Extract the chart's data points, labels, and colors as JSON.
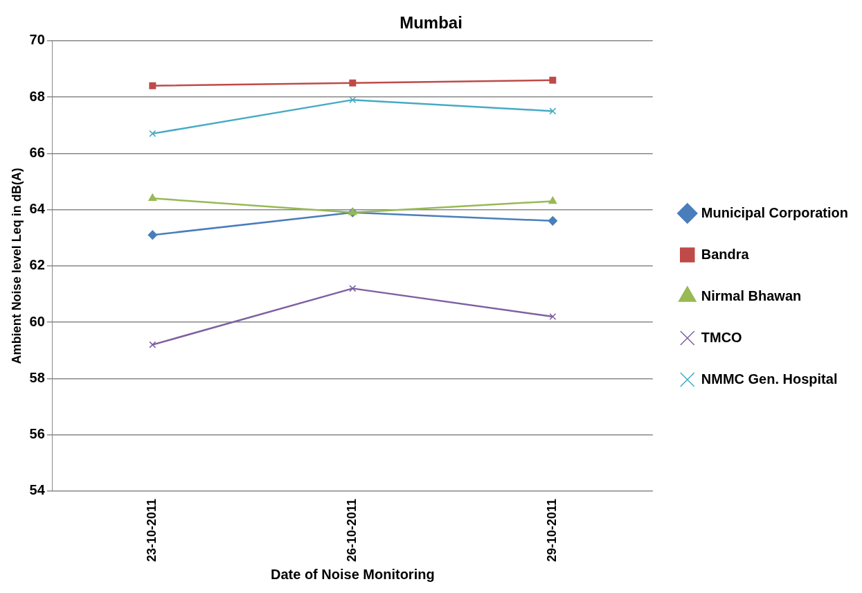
{
  "chart_data": {
    "type": "line",
    "title": "Mumbai",
    "xlabel": "Date of Noise Monitoring",
    "ylabel": "Ambient Noise level Leq in dB(A)",
    "categories": [
      "23-10-2011",
      "26-10-2011",
      "29-10-2011"
    ],
    "series": [
      {
        "name": "Municipal Corporation",
        "color": "#4a7ebb",
        "marker": "diamond",
        "values": [
          63.1,
          63.9,
          63.6
        ]
      },
      {
        "name": "Bandra",
        "color": "#be4b48",
        "marker": "square",
        "values": [
          68.4,
          68.5,
          68.6
        ]
      },
      {
        "name": "Nirmal Bhawan",
        "color": "#98b954",
        "marker": "triangle",
        "values": [
          64.4,
          63.9,
          64.3
        ]
      },
      {
        "name": "TMCO",
        "color": "#7d60a0",
        "marker": "cross",
        "values": [
          59.2,
          61.2,
          60.2
        ]
      },
      {
        "name": "NMMC Gen. Hospital",
        "color": "#46aac5",
        "marker": "cross",
        "values": [
          66.7,
          67.9,
          67.5
        ]
      }
    ],
    "ylim": [
      54,
      70
    ],
    "yticks": [
      54,
      56,
      58,
      60,
      62,
      64,
      66,
      68,
      70
    ],
    "grid": "y",
    "legend": "right",
    "line_style": "solid"
  }
}
